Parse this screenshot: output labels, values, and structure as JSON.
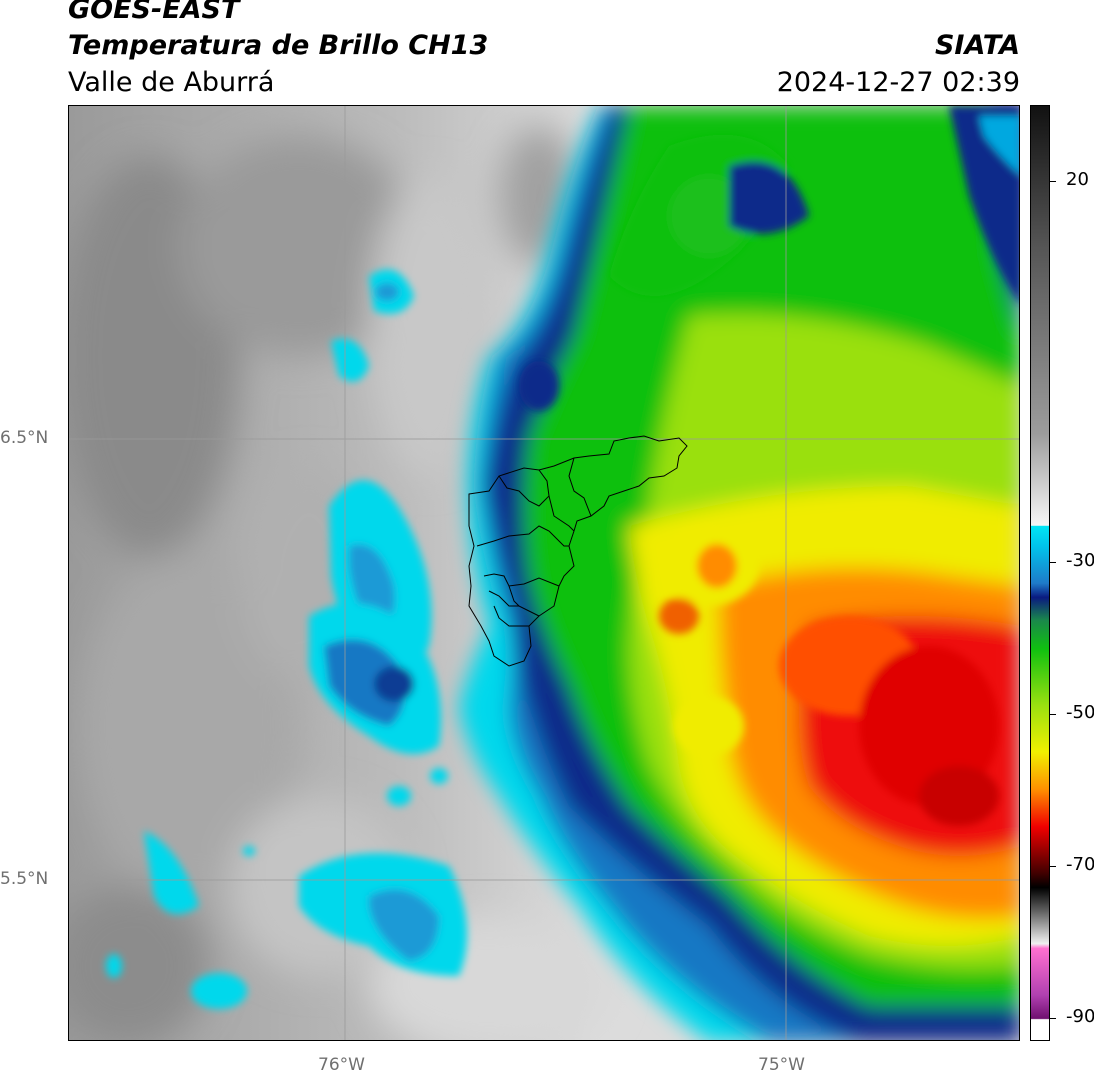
{
  "header": {
    "satellite": "GOES-EAST",
    "product": "Temperatura de Brillo CH13",
    "region": "Valle de Aburrá",
    "organization": "SIATA",
    "timestamp": "2024-12-27 02:39"
  },
  "map": {
    "lat_labels": [
      "6.5°N",
      "5.5°N"
    ],
    "lon_labels": [
      "76°W",
      "75°W"
    ],
    "lat_range": [
      5.15,
      7.27
    ],
    "lon_range": [
      -76.62,
      -74.53
    ],
    "graticule_lat": [
      6.5,
      5.5
    ],
    "graticule_lon": [
      -76.0,
      -75.0
    ],
    "overlay": "municipal boundaries of Valle de Aburrá"
  },
  "colorbar": {
    "ticks": [
      {
        "value": 20,
        "label": "20"
      },
      {
        "value": -30,
        "label": "-30"
      },
      {
        "value": -50,
        "label": "-50"
      },
      {
        "value": -70,
        "label": "-70"
      },
      {
        "value": -90,
        "label": "-90"
      }
    ],
    "range": [
      -93,
      30
    ],
    "colors": {
      "warm_gray": "#8a8a8a",
      "light": "#f0f0f0",
      "cyan": "#00e0f0",
      "blue": "#0062b8",
      "navy": "#001a80",
      "green": "#12c312",
      "yellow": "#f0f000",
      "orange": "#ff8000",
      "red": "#f00000",
      "black": "#000000",
      "magenta": "#c040c0"
    }
  }
}
